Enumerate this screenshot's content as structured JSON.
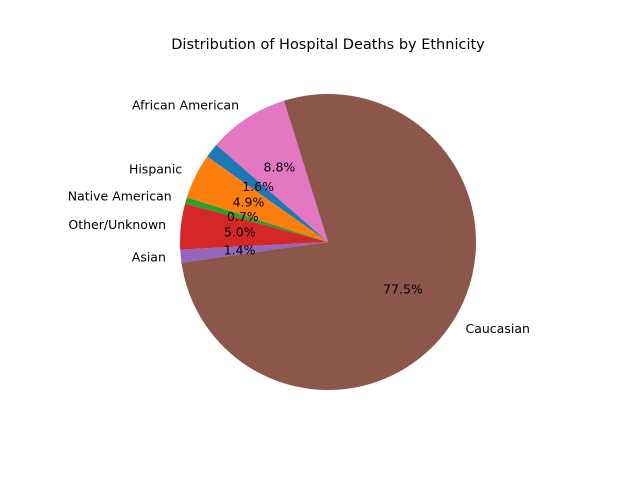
{
  "chart_data": {
    "type": "pie",
    "title": "Distribution of Hospital Deaths by Ethnicity",
    "slices": [
      {
        "label": "African American",
        "value": 8.8,
        "pct_label": "8.8%",
        "color": "#e377c2"
      },
      {
        "label": "",
        "value": 1.6,
        "pct_label": "1.6%",
        "color": "#1f77b4"
      },
      {
        "label": "Hispanic",
        "value": 4.9,
        "pct_label": "4.9%",
        "color": "#ff7f0e"
      },
      {
        "label": "Native American",
        "value": 0.7,
        "pct_label": "0.7%",
        "color": "#2ca02c"
      },
      {
        "label": "Other/Unknown",
        "value": 5.0,
        "pct_label": "5.0%",
        "color": "#d62728"
      },
      {
        "label": "Asian",
        "value": 1.4,
        "pct_label": "1.4%",
        "color": "#9467bd"
      },
      {
        "label": "Caucasian",
        "value": 77.5,
        "pct_label": "77.5%",
        "color": "#8c564b"
      }
    ],
    "legend": "none"
  }
}
